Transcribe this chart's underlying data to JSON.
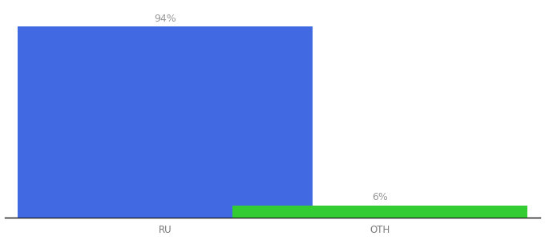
{
  "categories": [
    "RU",
    "OTH"
  ],
  "values": [
    94,
    6
  ],
  "bar_colors": [
    "#4169e1",
    "#33cc33"
  ],
  "label_texts": [
    "94%",
    "6%"
  ],
  "ylim": [
    0,
    105
  ],
  "background_color": "#ffffff",
  "text_color": "#999999",
  "label_fontsize": 9,
  "tick_fontsize": 8.5,
  "bar_width": 0.55,
  "x_positions": [
    0.3,
    0.7
  ],
  "xlim": [
    0.0,
    1.0
  ]
}
